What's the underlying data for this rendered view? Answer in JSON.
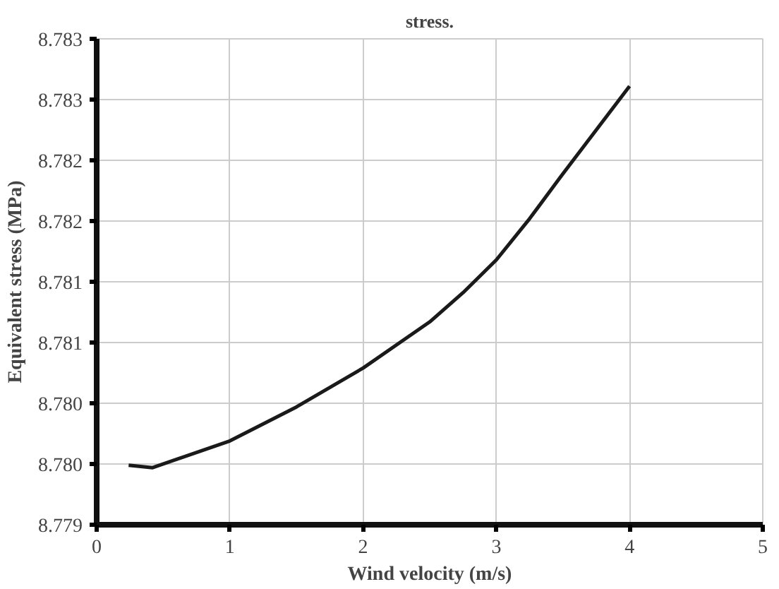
{
  "chart_data": {
    "type": "line",
    "title": "stress.",
    "xlabel": "Wind velocity (m/s)",
    "ylabel": "Equivalent stress (MPa)",
    "x": [
      0.24,
      0.42,
      1,
      1.5,
      2,
      2.5,
      2.75,
      3,
      3.25,
      3.5,
      4
    ],
    "series": [
      {
        "color": "#1a1a1a",
        "values": [
          8.77949,
          8.77947,
          8.77969,
          8.77997,
          8.78029,
          8.78067,
          8.78091,
          8.78118,
          8.78152,
          8.78189,
          8.78261
        ]
      }
    ],
    "xlim": [
      0,
      5
    ],
    "xticks": [
      0,
      1,
      2,
      3,
      4,
      5
    ],
    "ylim": [
      8.779,
      8.783
    ],
    "yticks": [
      8.779,
      {
        "value": 8.7795,
        "label": "8.780"
      },
      {
        "value": 8.78,
        "label": "8.780"
      },
      {
        "value": 8.7805,
        "label": "8.781"
      },
      {
        "value": 8.781,
        "label": "8.781"
      },
      {
        "value": 8.7815,
        "label": "8.782"
      },
      {
        "value": 8.782,
        "label": "8.782"
      },
      {
        "value": 8.7825,
        "label": "8.783"
      },
      {
        "value": 8.783,
        "label": "8.783"
      }
    ],
    "grid": true,
    "marker": "none",
    "line_style": "solid"
  }
}
